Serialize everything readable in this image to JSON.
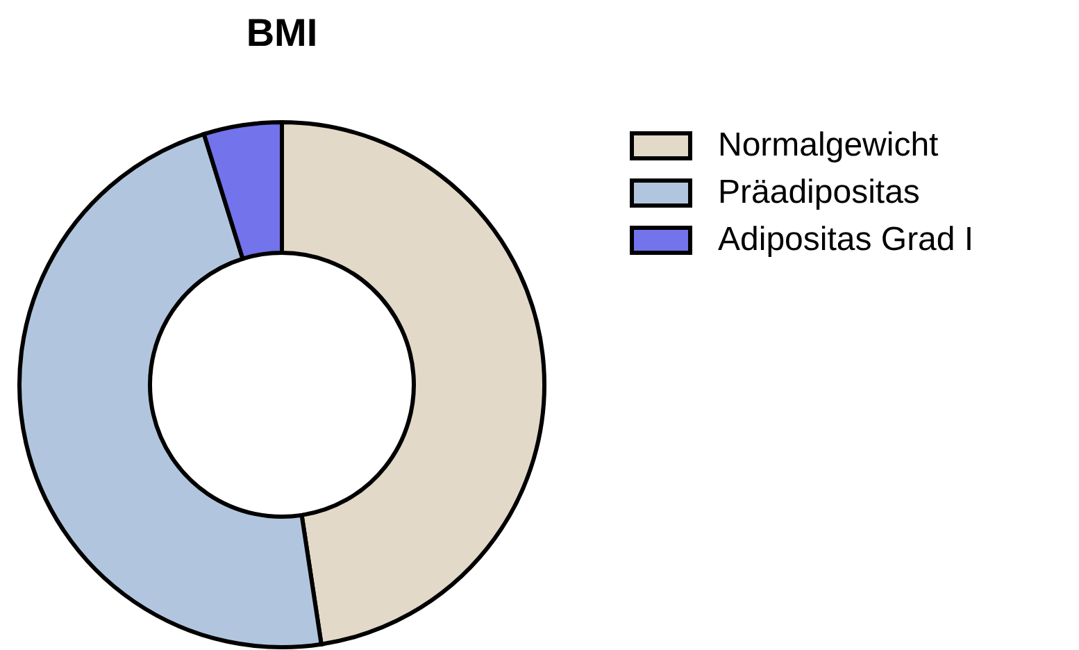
{
  "chart_data": {
    "type": "donut",
    "title": "BMI",
    "categories": [
      "Normalgewicht",
      "Präadipositas",
      "Adipositas Grad I"
    ],
    "values": [
      47.6,
      47.6,
      4.8
    ],
    "colors": [
      "#e2d9c9",
      "#b1c6de",
      "#7373ec"
    ],
    "legend": "top right"
  }
}
